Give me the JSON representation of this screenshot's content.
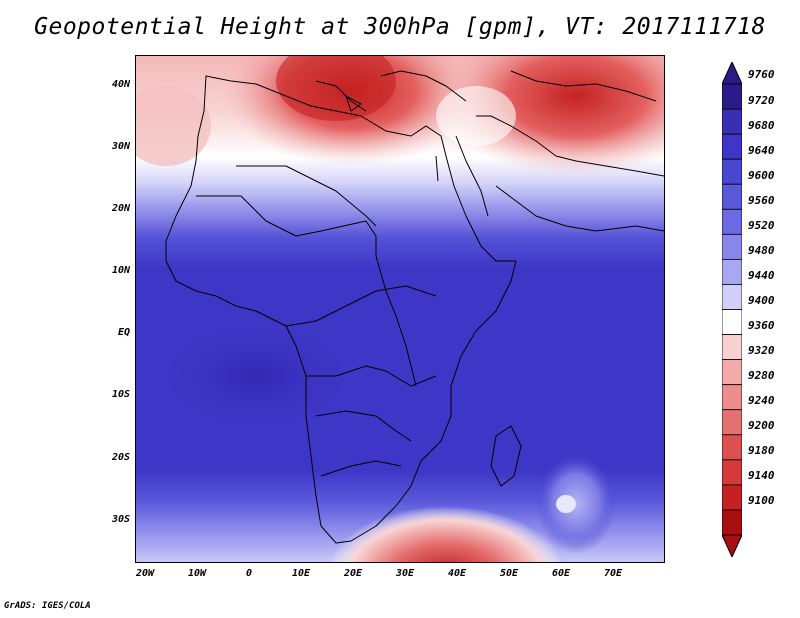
{
  "title": "Geopotential Height at 300hPa [gpm], VT: 2017111718",
  "credit": "GrADS: IGES/COLA",
  "map": {
    "lat_labels": [
      "40N",
      "30N",
      "20N",
      "10N",
      "EQ",
      "10S",
      "20S",
      "30S"
    ],
    "lon_labels": [
      "20W",
      "10W",
      "0",
      "10E",
      "20E",
      "30E",
      "40E",
      "50E",
      "60E",
      "70E"
    ]
  },
  "colorbar": {
    "levels": [
      "9760",
      "9720",
      "9680",
      "9640",
      "9600",
      "9560",
      "9520",
      "9480",
      "9440",
      "9400",
      "9360",
      "9320",
      "9280",
      "9240",
      "9200",
      "9180",
      "9140",
      "9100"
    ],
    "colors": [
      "#2a1a8a",
      "#3a2eb4",
      "#3e36c6",
      "#4a46d0",
      "#5a58da",
      "#6c6ae2",
      "#8886ea",
      "#a8a8f2",
      "#d0d0f8",
      "#ffffff",
      "#f8d0d0",
      "#f2aaaa",
      "#ec8c8c",
      "#e47070",
      "#dc5050",
      "#d43a3a",
      "#c42222",
      "#a81010"
    ]
  }
}
